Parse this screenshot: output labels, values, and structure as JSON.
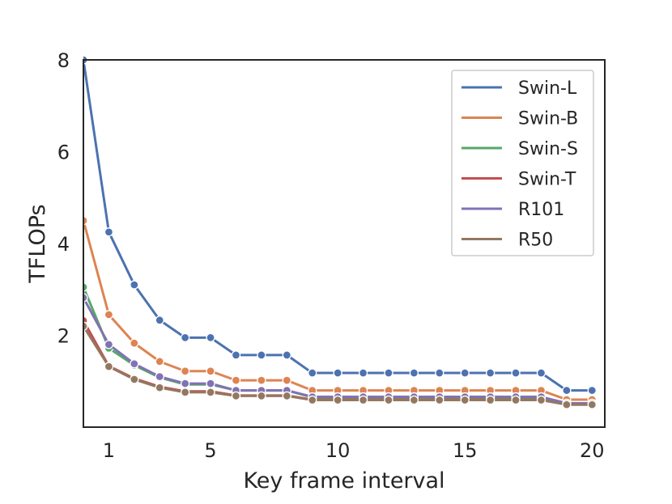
{
  "chart_data": {
    "type": "line",
    "title": "",
    "xlabel": "Key frame interval",
    "ylabel": "TFLOPs",
    "xlim": [
      0,
      20.5
    ],
    "ylim": [
      0.0,
      8.0
    ],
    "xticks": [
      1,
      5,
      10,
      15,
      20
    ],
    "yticks": [
      2,
      4,
      6,
      8
    ],
    "grid": false,
    "legend_position": "top-right",
    "x": [
      0,
      1,
      2,
      3,
      4,
      5,
      6,
      7,
      8,
      9,
      10,
      11,
      12,
      13,
      14,
      15,
      16,
      17,
      18,
      19,
      20
    ],
    "series": [
      {
        "name": "Swin-L",
        "color": "#4c72b0",
        "values": [
          8.0,
          4.25,
          3.1,
          2.33,
          1.95,
          1.95,
          1.57,
          1.57,
          1.57,
          1.18,
          1.18,
          1.18,
          1.18,
          1.18,
          1.18,
          1.18,
          1.18,
          1.18,
          1.18,
          0.8,
          0.8
        ]
      },
      {
        "name": "Swin-B",
        "color": "#dd8452",
        "values": [
          4.5,
          2.45,
          1.83,
          1.43,
          1.22,
          1.22,
          1.02,
          1.02,
          1.02,
          0.8,
          0.8,
          0.8,
          0.8,
          0.8,
          0.8,
          0.8,
          0.8,
          0.8,
          0.8,
          0.6,
          0.6
        ]
      },
      {
        "name": "Swin-S",
        "color": "#55a868",
        "values": [
          3.05,
          1.72,
          1.35,
          1.08,
          0.93,
          0.93,
          0.8,
          0.8,
          0.8,
          0.65,
          0.65,
          0.65,
          0.65,
          0.65,
          0.65,
          0.65,
          0.65,
          0.65,
          0.65,
          0.52,
          0.52
        ]
      },
      {
        "name": "Swin-T",
        "color": "#c44e52",
        "values": [
          2.32,
          1.33,
          1.06,
          0.88,
          0.78,
          0.78,
          0.69,
          0.69,
          0.69,
          0.6,
          0.6,
          0.6,
          0.6,
          0.6,
          0.6,
          0.6,
          0.6,
          0.6,
          0.6,
          0.5,
          0.5
        ]
      },
      {
        "name": "R101",
        "color": "#8172b3",
        "values": [
          2.82,
          1.8,
          1.38,
          1.1,
          0.95,
          0.95,
          0.8,
          0.8,
          0.8,
          0.66,
          0.66,
          0.66,
          0.66,
          0.66,
          0.66,
          0.66,
          0.66,
          0.66,
          0.66,
          0.52,
          0.52
        ]
      },
      {
        "name": "R50",
        "color": "#937860",
        "values": [
          2.2,
          1.32,
          1.04,
          0.86,
          0.76,
          0.76,
          0.68,
          0.68,
          0.68,
          0.59,
          0.59,
          0.59,
          0.59,
          0.59,
          0.59,
          0.59,
          0.59,
          0.59,
          0.59,
          0.49,
          0.49
        ]
      }
    ]
  }
}
